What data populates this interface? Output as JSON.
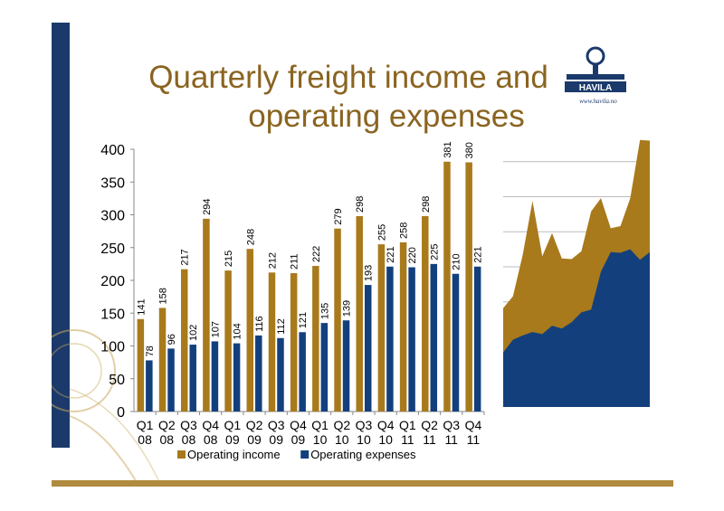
{
  "title": {
    "line1": "Quarterly freight income and",
    "line2": "operating expenses"
  },
  "logo": {
    "name": "HAVILA",
    "url": "www.havila.no"
  },
  "colors": {
    "income": "#a87a1c",
    "expenses": "#13407d",
    "title": "#8a6420",
    "band": "#1b3a6b",
    "rule": "#b08a3e"
  },
  "chart_data": {
    "type": "bar",
    "categories": [
      [
        "Q1",
        "08"
      ],
      [
        "Q2",
        "08"
      ],
      [
        "Q3",
        "08"
      ],
      [
        "Q4",
        "08"
      ],
      [
        "Q1",
        "09"
      ],
      [
        "Q2",
        "09"
      ],
      [
        "Q3",
        "09"
      ],
      [
        "Q4",
        "09"
      ],
      [
        "Q1",
        "10"
      ],
      [
        "Q2",
        "10"
      ],
      [
        "Q3",
        "10"
      ],
      [
        "Q4",
        "10"
      ],
      [
        "Q1",
        "11"
      ],
      [
        "Q2",
        "11"
      ],
      [
        "Q3",
        "11"
      ],
      [
        "Q4",
        "11"
      ]
    ],
    "series": [
      {
        "name": "Operating income",
        "values": [
          141,
          158,
          217,
          294,
          215,
          248,
          212,
          211,
          222,
          279,
          298,
          255,
          258,
          298,
          381,
          380
        ]
      },
      {
        "name": "Operating expenses",
        "values": [
          78,
          96,
          102,
          107,
          104,
          116,
          112,
          121,
          135,
          139,
          193,
          221,
          220,
          225,
          210,
          221
        ]
      }
    ],
    "yticks": [
      0,
      50,
      100,
      150,
      200,
      250,
      300,
      350,
      400
    ],
    "ylim": [
      0,
      400
    ],
    "legend": "bottom",
    "grid": false
  },
  "side_chart": {
    "type": "area",
    "series": [
      {
        "name": "Operating income",
        "values": [
          141,
          158,
          217,
          294,
          215,
          248,
          212,
          211,
          222,
          279,
          298,
          255,
          258,
          298,
          381,
          380
        ]
      },
      {
        "name": "Operating expenses",
        "values": [
          78,
          96,
          102,
          107,
          104,
          116,
          112,
          121,
          135,
          139,
          193,
          221,
          220,
          225,
          210,
          221
        ]
      }
    ],
    "ylim": [
      0,
      400
    ],
    "grid": true
  }
}
